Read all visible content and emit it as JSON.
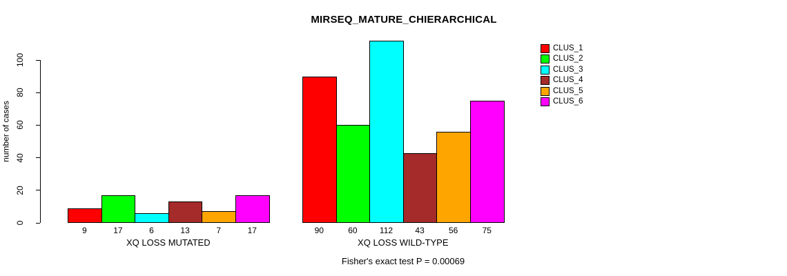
{
  "chart_data": {
    "type": "bar",
    "title": "MIRSEQ_MATURE_CHIERARCHICAL",
    "ylabel": "number of cases",
    "caption": "Fisher's exact test P = 0.00069",
    "yticks": [
      0,
      20,
      40,
      60,
      80,
      100
    ],
    "ylim": [
      0,
      112
    ],
    "grid": false,
    "bar_value_labels_shown": true,
    "legend_position": "right",
    "categories": [
      "XQ LOSS MUTATED",
      "XQ LOSS WILD-TYPE"
    ],
    "groups": [
      {
        "label": "XQ LOSS MUTATED",
        "values": [
          9,
          17,
          6,
          13,
          7,
          17
        ]
      },
      {
        "label": "XQ LOSS WILD-TYPE",
        "values": [
          90,
          60,
          112,
          43,
          56,
          75
        ]
      }
    ],
    "series": [
      {
        "name": "CLUS_1",
        "color": "#FF0000",
        "values": [
          9,
          90
        ]
      },
      {
        "name": "CLUS_2",
        "color": "#00FF00",
        "values": [
          17,
          60
        ]
      },
      {
        "name": "CLUS_3",
        "color": "#00FFFF",
        "values": [
          6,
          112
        ]
      },
      {
        "name": "CLUS_4",
        "color": "#A52A2A",
        "values": [
          13,
          43
        ]
      },
      {
        "name": "CLUS_5",
        "color": "#FFA500",
        "values": [
          7,
          56
        ]
      },
      {
        "name": "CLUS_6",
        "color": "#FF00FF",
        "values": [
          17,
          75
        ]
      }
    ],
    "colors": {
      "bar_border": "#000000",
      "background": "#FFFFFF",
      "text": "#000000"
    }
  }
}
